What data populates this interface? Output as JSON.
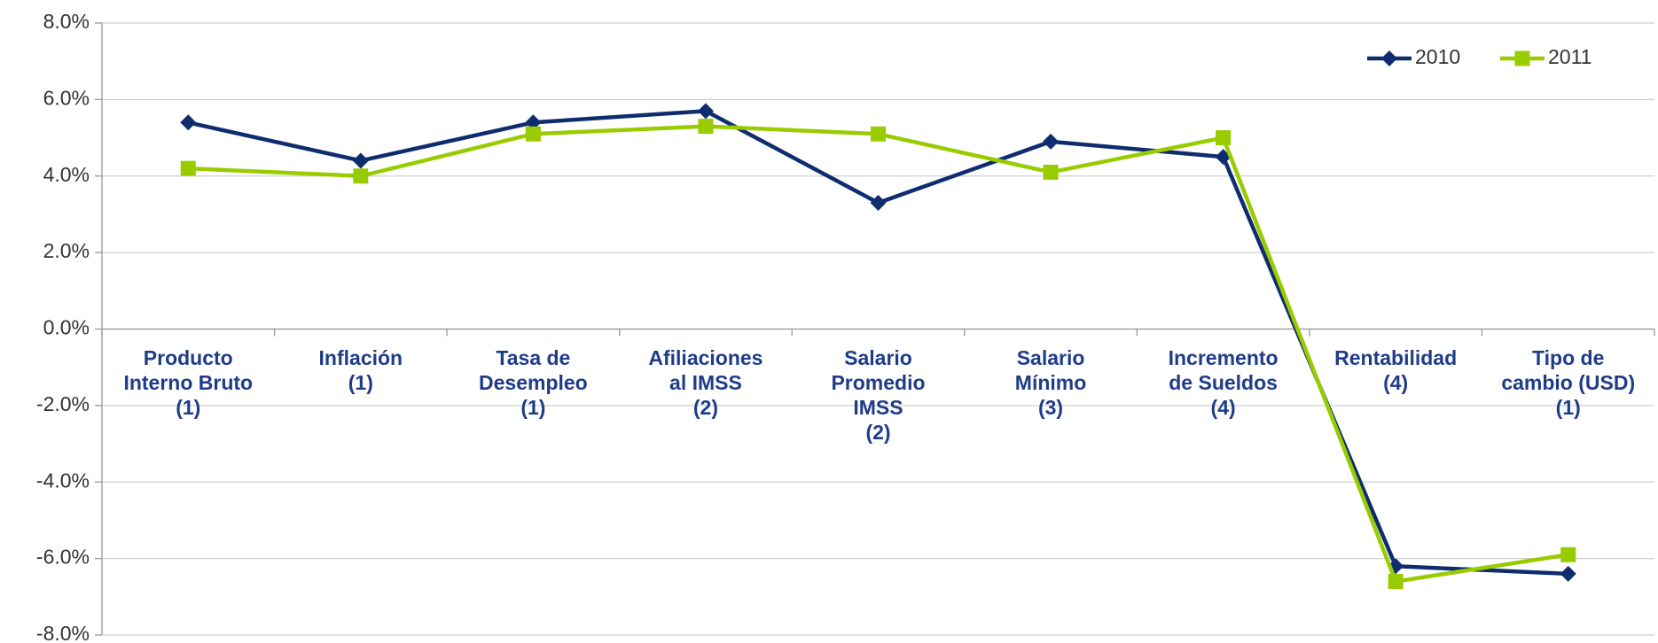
{
  "chart_data": {
    "type": "line",
    "categories": [
      "Producto\nInterno Bruto\n(1)",
      "Inflación\n(1)",
      "Tasa de\nDesempleo\n(1)",
      "Afiliaciones\nal IMSS\n(2)",
      "Salario\nPromedio\nIMSS\n(2)",
      "Salario\nMínimo\n(3)",
      "Incremento\nde Sueldos\n(4)",
      "Rentabilidad\n(4)",
      "Tipo de\ncambio (USD)\n(1)"
    ],
    "series": [
      {
        "name": "2010",
        "color": "#0f2d6e",
        "marker": "diamond",
        "values": [
          5.4,
          4.4,
          5.4,
          5.7,
          3.3,
          4.9,
          4.5,
          -6.2,
          -6.4
        ]
      },
      {
        "name": "2011",
        "color": "#99cc00",
        "marker": "square",
        "values": [
          4.2,
          4.0,
          5.1,
          5.3,
          5.1,
          4.1,
          5.0,
          -6.6,
          -5.9
        ]
      }
    ],
    "ylim": [
      -8,
      8
    ],
    "yticks": [
      {
        "value": -8,
        "label": "-8.0%"
      },
      {
        "value": -6,
        "label": "-6.0%"
      },
      {
        "value": -4,
        "label": "-4.0%"
      },
      {
        "value": -2,
        "label": "-2.0%"
      },
      {
        "value": 0,
        "label": "0.0%"
      },
      {
        "value": 2,
        "label": "2.0%"
      },
      {
        "value": 4,
        "label": "4.0%"
      },
      {
        "value": 6,
        "label": "6.0%"
      },
      {
        "value": 8,
        "label": "8.0%"
      }
    ],
    "grid": true,
    "legend": "top-right"
  }
}
